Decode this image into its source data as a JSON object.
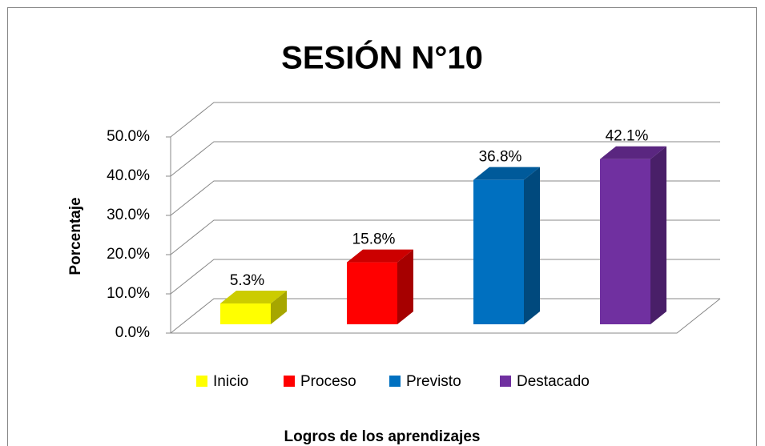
{
  "chart_data": {
    "type": "bar3d",
    "title": "SESIÓN N°10",
    "y_label": "Porcentaje",
    "x_label": "Logros de los aprendizajes",
    "categories": [
      null
    ],
    "series": [
      {
        "name": "Inicio",
        "color": "#ffff00",
        "values": [
          5.3
        ],
        "value_labels": [
          "5.3%"
        ]
      },
      {
        "name": "Proceso",
        "color": "#ff0000",
        "values": [
          15.8
        ],
        "value_labels": [
          "15.8%"
        ]
      },
      {
        "name": "Previsto",
        "color": "#0070c0",
        "values": [
          36.8
        ],
        "value_labels": [
          "36.8%"
        ]
      },
      {
        "name": "Destacado",
        "color": "#7030a0",
        "values": [
          42.1
        ],
        "value_labels": [
          "42.1%"
        ]
      }
    ],
    "ylim": [
      0,
      50
    ],
    "yticks": [
      {
        "value": 0,
        "label": "0.0%"
      },
      {
        "value": 10,
        "label": "10.0%"
      },
      {
        "value": 20,
        "label": "20.0%"
      },
      {
        "value": 30,
        "label": "30.0%"
      },
      {
        "value": 40,
        "label": "40.0%"
      },
      {
        "value": 50,
        "label": "50.0%"
      }
    ],
    "grid": true,
    "legend": "bottom"
  }
}
